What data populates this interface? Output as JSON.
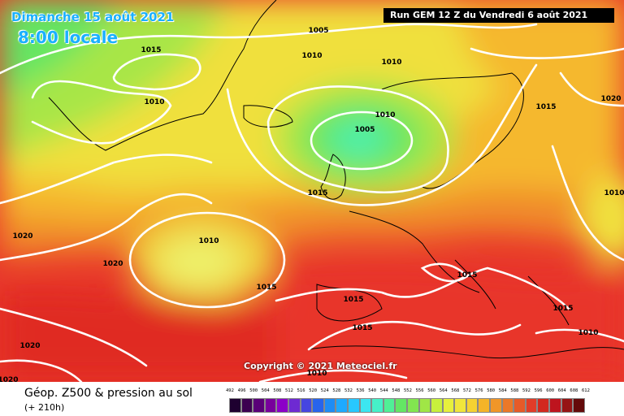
{
  "header": {
    "date": "Dimanche 15 août 2021",
    "time": "8:00 locale",
    "run": "Run GEM 12 Z du Vendredi 6 août 2021"
  },
  "copyright": "Copyright © 2021 Meteociel.fr",
  "footer": {
    "title": "Géop. Z500 & pression au sol",
    "lead": "(+ 210h)"
  },
  "isobar_labels": [
    {
      "text": "1005",
      "place": "north-atlantic-top"
    },
    {
      "text": "1010",
      "place": "north-atlantic"
    },
    {
      "text": "1010",
      "place": "norway-sea"
    },
    {
      "text": "1015",
      "place": "greenland"
    },
    {
      "text": "1010",
      "place": "greenland-south"
    },
    {
      "text": "1010",
      "place": "low-iceland-uk"
    },
    {
      "text": "1005",
      "place": "low-center"
    },
    {
      "text": "1015",
      "place": "ireland"
    },
    {
      "text": "1020",
      "place": "russia"
    },
    {
      "text": "1015",
      "place": "scandinavia"
    },
    {
      "text": "1010",
      "place": "russia-east"
    },
    {
      "text": "1020",
      "place": "west-atlantic"
    },
    {
      "text": "1020",
      "place": "mid-atlantic"
    },
    {
      "text": "1010",
      "place": "azores-low"
    },
    {
      "text": "1015",
      "place": "iberia-west"
    },
    {
      "text": "1015",
      "place": "italy"
    },
    {
      "text": "1015",
      "place": "iberia"
    },
    {
      "text": "1015",
      "place": "mediterranean"
    },
    {
      "text": "1015",
      "place": "greece"
    },
    {
      "text": "1010",
      "place": "turkey"
    },
    {
      "text": "1020",
      "place": "southwest"
    },
    {
      "text": "1020",
      "place": "southwest-corner"
    },
    {
      "text": "1010",
      "place": "north-africa"
    }
  ],
  "legend": {
    "ticks": [
      "492",
      "496",
      "500",
      "504",
      "508",
      "512",
      "516",
      "520",
      "524",
      "528",
      "532",
      "536",
      "540",
      "544",
      "548",
      "552",
      "556",
      "560",
      "564",
      "568",
      "572",
      "576",
      "580",
      "584",
      "588",
      "592",
      "596",
      "600",
      "604",
      "608",
      "612"
    ],
    "colors": [
      "#1e0030",
      "#3c0050",
      "#5a0078",
      "#78009c",
      "#8c00c8",
      "#6e2ad2",
      "#4646e0",
      "#2864ec",
      "#1e8cf5",
      "#1eaaff",
      "#28c8ff",
      "#3ce6f0",
      "#46f0c8",
      "#50f096",
      "#64e664",
      "#82e650",
      "#a0e646",
      "#c8f03c",
      "#e6f03c",
      "#f0e63c",
      "#f5d232",
      "#f5b428",
      "#f09628",
      "#eb7828",
      "#e65a28",
      "#e13c28",
      "#d2281e",
      "#be141e",
      "#961414",
      "#640a0a"
    ]
  }
}
